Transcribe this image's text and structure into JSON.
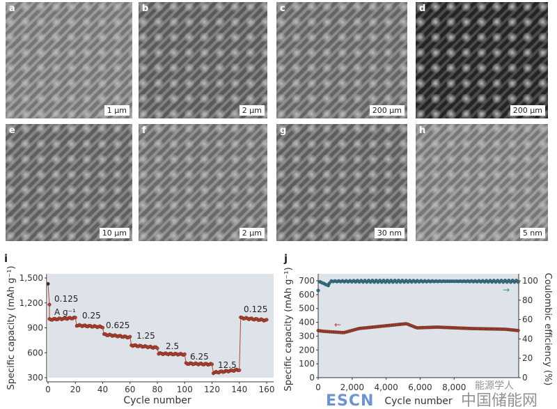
{
  "panels": [
    {
      "label": "a",
      "scale": "1 µm",
      "tone": "#8a8a8a"
    },
    {
      "label": "b",
      "scale": "2 µm",
      "tone": "#6a6a6a"
    },
    {
      "label": "c",
      "scale": "200 µm",
      "tone": "#777777"
    },
    {
      "label": "d",
      "scale": "200 µm",
      "tone": "#2a2a2a"
    },
    {
      "label": "e",
      "scale": "10 µm",
      "tone": "#707070"
    },
    {
      "label": "f",
      "scale": "2 µm",
      "tone": "#7d7d7d"
    },
    {
      "label": "g",
      "scale": "30 nm",
      "tone": "#6e6e6e"
    },
    {
      "label": "h",
      "scale": "5 nm",
      "tone": "#8c8c8c"
    }
  ],
  "watermark": {
    "brand": "ESCN",
    "cn": "中国储能网",
    "account": "能源学人"
  },
  "chart_data": [
    {
      "panel": "i",
      "type": "scatter",
      "xlabel": "Cycle number",
      "ylabel": "Specific capacity (mAh g⁻¹)",
      "xlim": [
        0,
        160
      ],
      "ylim": [
        300,
        1500
      ],
      "xticks": [
        0,
        20,
        40,
        60,
        80,
        100,
        120,
        140,
        160
      ],
      "yticks": [
        300,
        600,
        900,
        1200,
        1500
      ],
      "ytick_labels": [
        "300",
        "600",
        "900",
        "1,200",
        "1,500"
      ],
      "initial_points": [
        [
          0,
          1430
        ],
        [
          1,
          1180
        ]
      ],
      "segments": [
        {
          "label": "0.125",
          "unit": "A g⁻¹",
          "x": [
            1,
            20
          ],
          "y": [
            1000,
            1020
          ]
        },
        {
          "label": "0.25",
          "x": [
            21,
            40
          ],
          "y": [
            930,
            910
          ]
        },
        {
          "label": "0.625",
          "x": [
            41,
            60
          ],
          "y": [
            820,
            785
          ]
        },
        {
          "label": "1.25",
          "x": [
            61,
            80
          ],
          "y": [
            690,
            660
          ]
        },
        {
          "label": "2.5",
          "x": [
            81,
            100
          ],
          "y": [
            590,
            580
          ]
        },
        {
          "label": "6.25",
          "x": [
            101,
            120
          ],
          "y": [
            470,
            460
          ]
        },
        {
          "label": "12.5",
          "x": [
            121,
            140
          ],
          "y": [
            360,
            395
          ]
        },
        {
          "label": "0.125",
          "x": [
            141,
            160
          ],
          "y": [
            1020,
            990
          ]
        }
      ],
      "colors": {
        "capacity": "#b5422e",
        "first": "#333333",
        "bg": "#dde3e8"
      }
    },
    {
      "panel": "j",
      "type": "scatter",
      "xlabel": "Cycle number",
      "ylabel": "Specific capacity (mAh g⁻¹)",
      "y2label": "Coulombic efficiency (%)",
      "xlim": [
        0,
        11800
      ],
      "ylim": [
        0,
        700
      ],
      "y2lim": [
        0,
        100
      ],
      "xticks": [
        0,
        2000,
        4000,
        6000,
        8000
      ],
      "xtick_labels": [
        "0",
        "2,000",
        "4,000",
        "6,000",
        "8,000"
      ],
      "yticks": [
        0,
        100,
        200,
        300,
        400,
        500,
        600,
        700
      ],
      "y2ticks": [
        0,
        20,
        40,
        60,
        80,
        100
      ],
      "series": [
        {
          "axis": "left",
          "color": "#a03a28",
          "x": [
            0,
            300,
            1500,
            2400,
            4000,
            5200,
            5800,
            7000,
            9000,
            11000,
            11800
          ],
          "y": [
            340,
            335,
            325,
            355,
            375,
            390,
            360,
            365,
            355,
            350,
            340
          ]
        },
        {
          "axis": "right",
          "color": "#2f6f86",
          "x": [
            0,
            100,
            600,
            700,
            2000,
            4000,
            6000,
            8000,
            10000,
            11800
          ],
          "y": [
            90,
            99,
            95,
            99.5,
            99.5,
            99.5,
            99.5,
            99.5,
            99.5,
            99.5
          ]
        }
      ],
      "bg": "#dde3e8"
    }
  ]
}
